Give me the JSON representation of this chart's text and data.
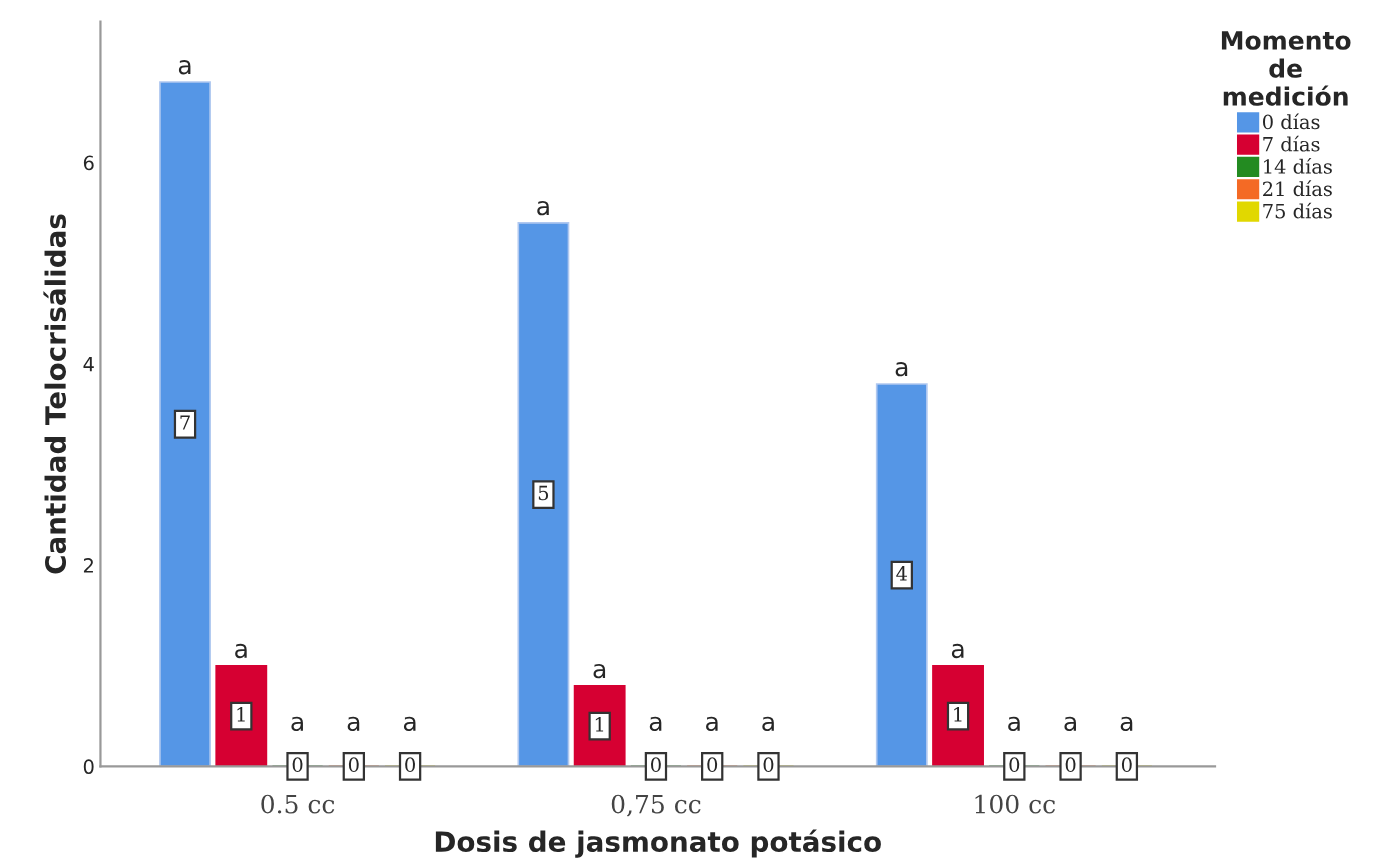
{
  "chart_data": {
    "type": "bar",
    "xlabel": "Dosis de jasmonato potásico",
    "ylabel": "Cantidad Telocrisálidas",
    "legend_title": "Momento\nde\nmedición",
    "legend": "top right",
    "grid": false,
    "categories": [
      "0.5 cc",
      "0,75 cc",
      "100 cc"
    ],
    "series": [
      {
        "name": "0 días",
        "color": "#5596e6",
        "values": [
          6.8,
          5.4,
          3.8
        ],
        "value_labels": [
          "7",
          "5",
          "4"
        ]
      },
      {
        "name": "7 días",
        "color": "#d60032",
        "values": [
          1.0,
          0.8,
          1.0
        ],
        "value_labels": [
          "1",
          "1",
          "1"
        ]
      },
      {
        "name": "14 días",
        "color": "#238b21",
        "values": [
          0,
          0,
          0
        ],
        "value_labels": [
          "0",
          "0",
          "0"
        ]
      },
      {
        "name": "21 días",
        "color": "#f46a25",
        "values": [
          0,
          0,
          0
        ],
        "value_labels": [
          "0",
          "0",
          "0"
        ]
      },
      {
        "name": "75 días",
        "color": "#e1d800",
        "values": [
          0,
          0,
          0
        ],
        "value_labels": [
          "0",
          "0",
          "0"
        ]
      }
    ],
    "ylim": [
      0,
      7.4
    ],
    "yticks": [
      0,
      2,
      4,
      6
    ],
    "annotations": [
      "a",
      "a",
      "a",
      "a",
      "a",
      "a",
      "a",
      "a",
      "a",
      "a",
      "a",
      "a",
      "a",
      "a",
      "a"
    ]
  }
}
